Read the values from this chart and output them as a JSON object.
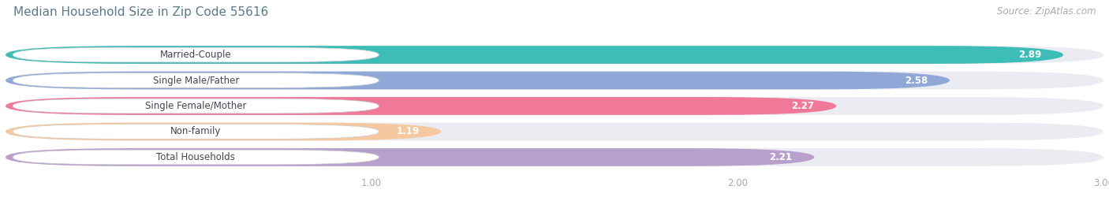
{
  "title": "Median Household Size in Zip Code 55616",
  "source": "Source: ZipAtlas.com",
  "categories": [
    "Married-Couple",
    "Single Male/Father",
    "Single Female/Mother",
    "Non-family",
    "Total Households"
  ],
  "values": [
    2.89,
    2.58,
    2.27,
    1.19,
    2.21
  ],
  "bar_colors": [
    "#3dbdb8",
    "#8fa8d8",
    "#f07898",
    "#f5c8a0",
    "#b8a0cc"
  ],
  "xlim": [
    0,
    3.0
  ],
  "xticks": [
    1.0,
    2.0,
    3.0
  ],
  "xtick_labels": [
    "1.00",
    "2.00",
    "3.00"
  ],
  "background_color": "#ffffff",
  "bar_bg_color": "#ebebf2",
  "title_color": "#5a7a8a",
  "label_text_color": "#444455",
  "value_text_color": "#ffffff",
  "tick_color": "#aaaaaa",
  "source_color": "#aaaaaa",
  "title_fontsize": 11,
  "label_fontsize": 8.5,
  "value_fontsize": 8.5,
  "source_fontsize": 8.5
}
